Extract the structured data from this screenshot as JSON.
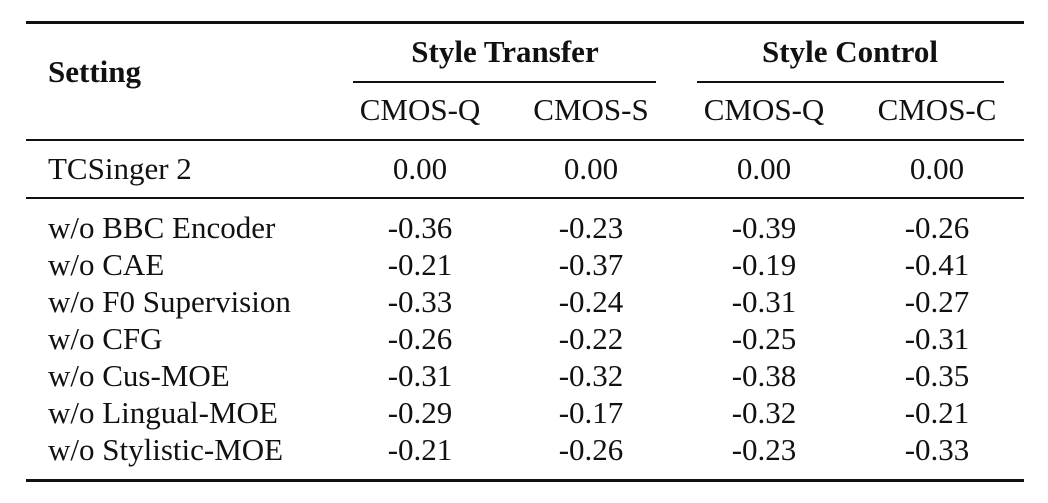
{
  "table": {
    "setting_header": "Setting",
    "groups": [
      {
        "label": "Style Transfer",
        "subcolumns": [
          "CMOS-Q",
          "CMOS-S"
        ]
      },
      {
        "label": "Style Control",
        "subcolumns": [
          "CMOS-Q",
          "CMOS-C"
        ]
      }
    ],
    "baseline": {
      "setting": "TCSinger 2",
      "values": [
        "0.00",
        "0.00",
        "0.00",
        "0.00"
      ]
    },
    "ablations": [
      {
        "setting": "w/o BBC Encoder",
        "values": [
          "-0.36",
          "-0.23",
          "-0.39",
          "-0.26"
        ]
      },
      {
        "setting": "w/o CAE",
        "values": [
          "-0.21",
          "-0.37",
          "-0.19",
          "-0.41"
        ]
      },
      {
        "setting": "w/o F0 Supervision",
        "values": [
          "-0.33",
          "-0.24",
          "-0.31",
          "-0.27"
        ]
      },
      {
        "setting": "w/o CFG",
        "values": [
          "-0.26",
          "-0.22",
          "-0.25",
          "-0.31"
        ]
      },
      {
        "setting": "w/o Cus-MOE",
        "values": [
          "-0.31",
          "-0.32",
          "-0.38",
          "-0.35"
        ]
      },
      {
        "setting": "w/o Lingual-MOE",
        "values": [
          "-0.29",
          "-0.17",
          "-0.32",
          "-0.21"
        ]
      },
      {
        "setting": "w/o Stylistic-MOE",
        "values": [
          "-0.21",
          "-0.26",
          "-0.23",
          "-0.33"
        ]
      }
    ]
  }
}
